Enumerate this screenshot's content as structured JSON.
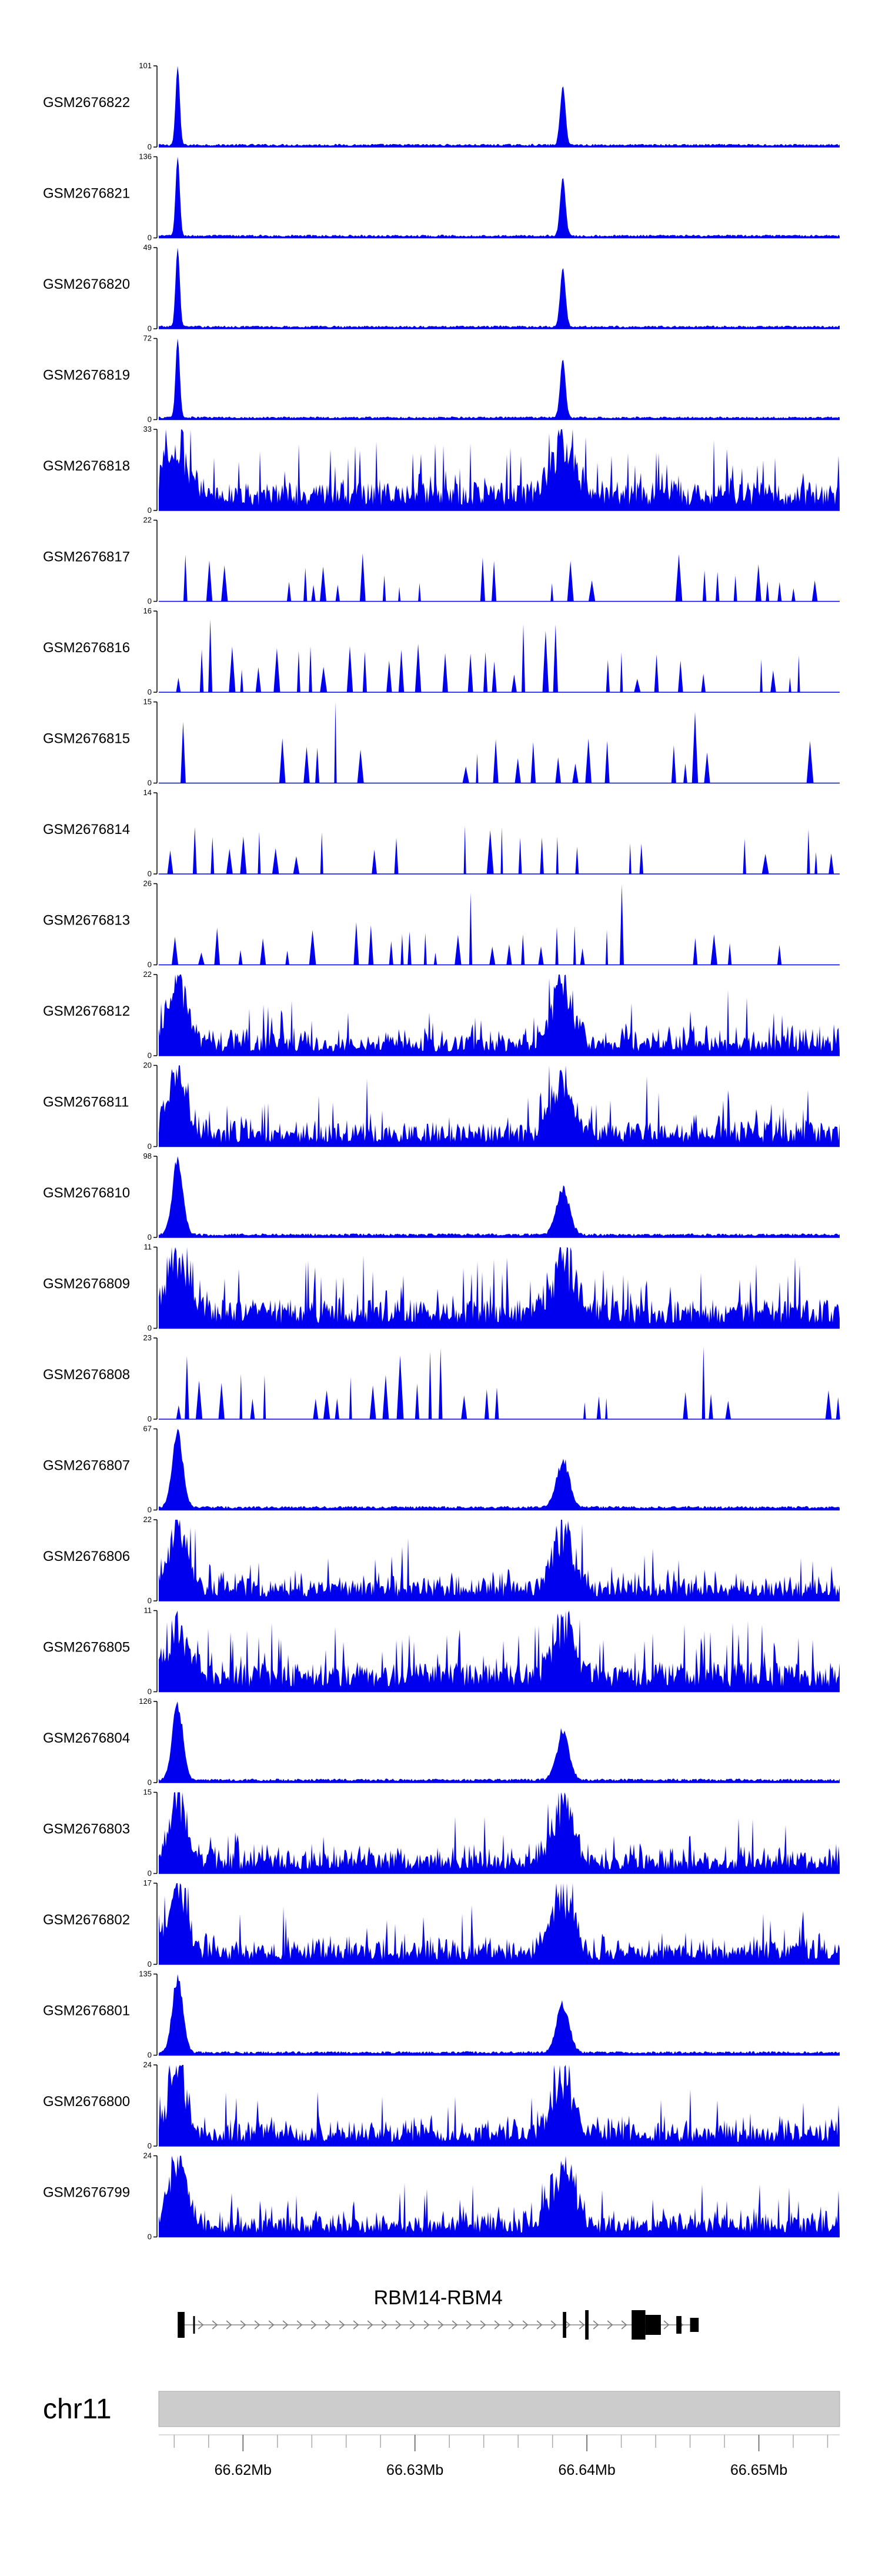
{
  "chart_data": {
    "type": "area",
    "title": "",
    "x_range_mb": [
      66.6151,
      66.6547
    ],
    "fill_color": "#0000ee",
    "peak_positions_mb": [
      66.6162,
      66.6386
    ],
    "tracks": [
      {
        "name": "GSM2676822",
        "ymax": "101",
        "ymin": "0",
        "profile": "sharp"
      },
      {
        "name": "GSM2676821",
        "ymax": "136",
        "ymin": "0",
        "profile": "sharp"
      },
      {
        "name": "GSM2676820",
        "ymax": "49",
        "ymin": "0",
        "profile": "sharp"
      },
      {
        "name": "GSM2676819",
        "ymax": "72",
        "ymin": "0",
        "profile": "sharp"
      },
      {
        "name": "GSM2676818",
        "ymax": "33",
        "ymin": "0",
        "profile": "noisy"
      },
      {
        "name": "GSM2676817",
        "ymax": "22",
        "ymin": "0",
        "profile": "sparse"
      },
      {
        "name": "GSM2676816",
        "ymax": "16",
        "ymin": "0",
        "profile": "sparse"
      },
      {
        "name": "GSM2676815",
        "ymax": "15",
        "ymin": "0",
        "profile": "sparse"
      },
      {
        "name": "GSM2676814",
        "ymax": "14",
        "ymin": "0",
        "profile": "sparse"
      },
      {
        "name": "GSM2676813",
        "ymax": "26",
        "ymin": "0",
        "profile": "sparse"
      },
      {
        "name": "GSM2676812",
        "ymax": "22",
        "ymin": "0",
        "profile": "broad"
      },
      {
        "name": "GSM2676811",
        "ymax": "20",
        "ymin": "0",
        "profile": "broad"
      },
      {
        "name": "GSM2676810",
        "ymax": "98",
        "ymin": "0",
        "profile": "medium"
      },
      {
        "name": "GSM2676809",
        "ymax": "11",
        "ymin": "0",
        "profile": "noisy"
      },
      {
        "name": "GSM2676808",
        "ymax": "23",
        "ymin": "0",
        "profile": "sparse"
      },
      {
        "name": "GSM2676807",
        "ymax": "67",
        "ymin": "0",
        "profile": "medium"
      },
      {
        "name": "GSM2676806",
        "ymax": "22",
        "ymin": "0",
        "profile": "broad"
      },
      {
        "name": "GSM2676805",
        "ymax": "11",
        "ymin": "0",
        "profile": "noisy"
      },
      {
        "name": "GSM2676804",
        "ymax": "126",
        "ymin": "0",
        "profile": "medium"
      },
      {
        "name": "GSM2676803",
        "ymax": "15",
        "ymin": "0",
        "profile": "broad"
      },
      {
        "name": "GSM2676802",
        "ymax": "17",
        "ymin": "0",
        "profile": "broad"
      },
      {
        "name": "GSM2676801",
        "ymax": "135",
        "ymin": "0",
        "profile": "medium"
      },
      {
        "name": "GSM2676800",
        "ymax": "24",
        "ymin": "0",
        "profile": "broad"
      },
      {
        "name": "GSM2676799",
        "ymax": "24",
        "ymin": "0",
        "profile": "broad"
      }
    ],
    "gene": {
      "name": "RBM14-RBM4",
      "start_mb": 66.6162,
      "end_mb": 66.6465,
      "strand": "+",
      "exons_mb": [
        [
          66.6162,
          66.6166
        ],
        [
          66.6171,
          66.6172
        ],
        [
          66.6386,
          66.6388
        ],
        [
          66.6399,
          66.6401
        ],
        [
          66.6426,
          66.6434
        ],
        [
          66.6434,
          66.6443
        ],
        [
          66.6452,
          66.6455
        ],
        [
          66.646,
          66.6465
        ]
      ]
    },
    "ideogram": {
      "chromosome": "chr11",
      "tick_labels": [
        "66.62Mb",
        "66.63Mb",
        "66.64Mb",
        "66.65Mb"
      ],
      "tick_values_mb": [
        66.62,
        66.63,
        66.64,
        66.65
      ],
      "minor_tick_step_mb": 0.002
    }
  }
}
